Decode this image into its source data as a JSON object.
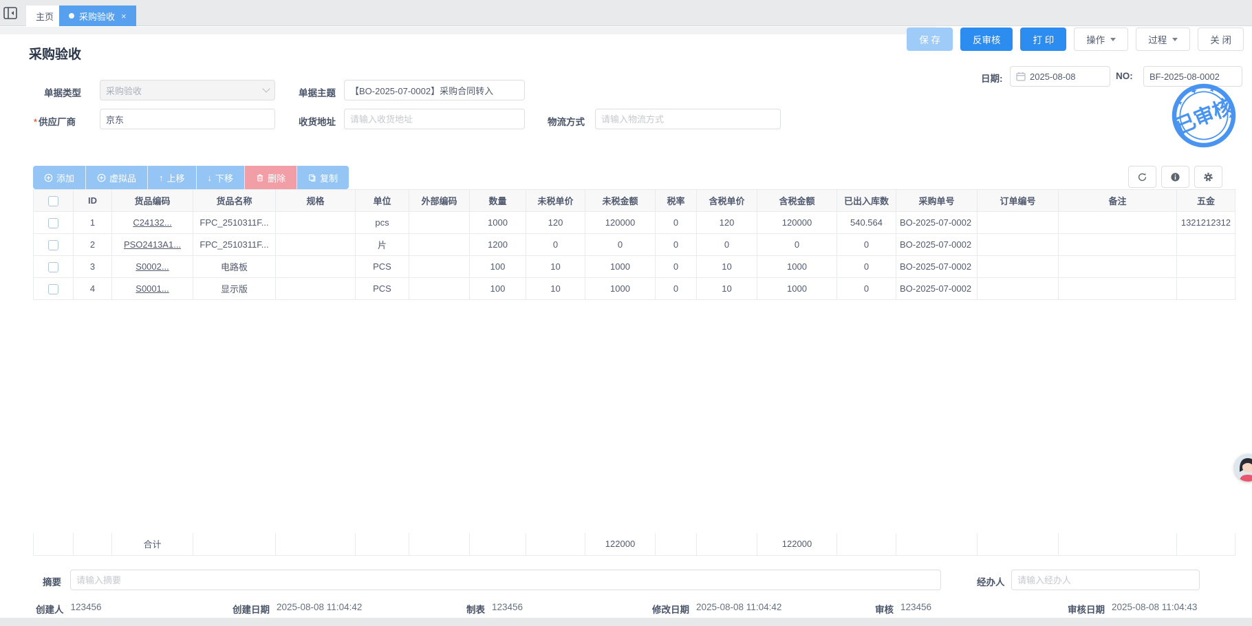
{
  "tabbar": {
    "home": "主页",
    "active": "采购验收",
    "close": "×"
  },
  "actions": {
    "save": "保 存",
    "unaudit": "反审核",
    "print": "打 印",
    "operate": "操作",
    "process": "过程",
    "close": "关 闭"
  },
  "doc": {
    "title": "采购验收",
    "date_label": "日期:",
    "date": "2025-08-08",
    "no_label": "NO:",
    "no": "BF-2025-08-0002",
    "stamp": "已审核"
  },
  "form": {
    "doc_type_label": "单据类型",
    "doc_type": "采购验收",
    "subject_label": "单据主题",
    "subject": "【BO-2025-07-0002】采购合同转入",
    "required_mark": "*",
    "supplier_label": "供应厂商",
    "supplier": "京东",
    "address_label": "收货地址",
    "address_placeholder": "请输入收货地址",
    "logistics_label": "物流方式",
    "logistics_placeholder": "请输入物流方式"
  },
  "toolbar": {
    "add": "添加",
    "virtual": "虚拟品",
    "move_up": "上移",
    "move_down": "下移",
    "delete": "删除",
    "copy": "复制"
  },
  "table": {
    "columns": [
      "ID",
      "货品编码",
      "货品名称",
      "规格",
      "单位",
      "外部编码",
      "数量",
      "未税单价",
      "未税金额",
      "税率",
      "含税单价",
      "含税金额",
      "已出入库数",
      "采购单号",
      "订单编号",
      "备注",
      "五金"
    ],
    "rows": [
      [
        "1",
        "C24132...",
        "FPC_2510311F...",
        "",
        "pcs",
        "",
        "1000",
        "120",
        "120000",
        "0",
        "120",
        "120000",
        "540.564",
        "BO-2025-07-0002",
        "",
        "",
        "1321212312"
      ],
      [
        "2",
        "PSO2413A1...",
        "FPC_2510311F...",
        "",
        "片",
        "",
        "1200",
        "0",
        "0",
        "0",
        "0",
        "0",
        "0",
        "BO-2025-07-0002",
        "",
        "",
        ""
      ],
      [
        "3",
        "S0002...",
        "电路板",
        "",
        "PCS",
        "",
        "100",
        "10",
        "1000",
        "0",
        "10",
        "1000",
        "0",
        "BO-2025-07-0002",
        "",
        "",
        ""
      ],
      [
        "4",
        "S0001...",
        "显示版",
        "",
        "PCS",
        "",
        "100",
        "10",
        "1000",
        "0",
        "10",
        "1000",
        "0",
        "BO-2025-07-0002",
        "",
        "",
        ""
      ]
    ],
    "totals": [
      "",
      "合计",
      "",
      "",
      "",
      "",
      "",
      "",
      "122000",
      "",
      "",
      "122000",
      "",
      "",
      "",
      "",
      ""
    ]
  },
  "summary": {
    "label": "摘要",
    "placeholder": "请输入摘要",
    "agent_label": "经办人",
    "agent_placeholder": "请输入经办人"
  },
  "footer": {
    "items": [
      {
        "label": "创建人",
        "value": "123456"
      },
      {
        "label": "创建日期",
        "value": "2025-08-08 11:04:42"
      },
      {
        "label": "制表",
        "value": "123456"
      },
      {
        "label": "修改日期",
        "value": "2025-08-08 11:04:42"
      },
      {
        "label": "审核",
        "value": "123456"
      },
      {
        "label": "审核日期",
        "value": "2025-08-08 11:04:43"
      }
    ]
  },
  "colors": {
    "primary": "#2d8cf0",
    "primary_disabled": "#9fcbf8",
    "tab_active": "#57a0f0",
    "toolbar_button": "#94c5f4",
    "delete_button": "#f19ea6",
    "stamp": "#3d8cf0"
  }
}
